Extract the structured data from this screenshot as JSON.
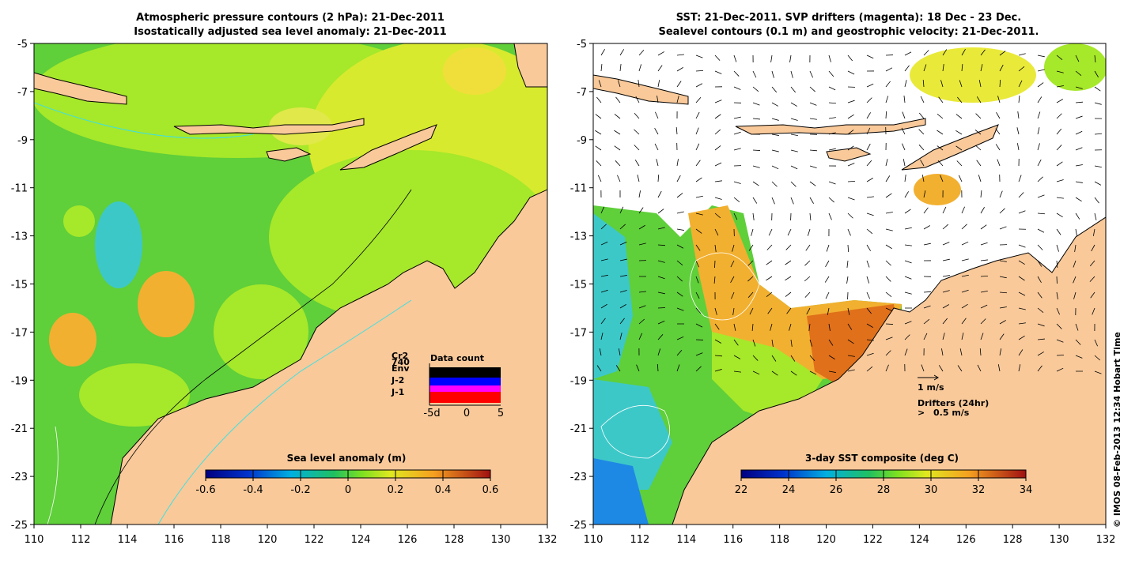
{
  "colors": {
    "land": "#f9c99a",
    "sea_green": "#5fcf3a",
    "sea_light": "#a6e82a",
    "sea_yellow": "#e9e93a",
    "sea_orange": "#f2b030",
    "sea_cyan": "#3dc8c8",
    "contour_cyan": "#40e0e0",
    "drifter_magenta": "#ff00ff",
    "env_blue": "#0000ff",
    "j1_red": "#ff0000",
    "coast": "#000000"
  },
  "left_panel": {
    "title_line1": "Atmospheric pressure contours (2 hPa): 21-Dec-2011",
    "title_line2": "Isostatically adjusted sea level anomaly: 21-Dec-2011",
    "colorbar": {
      "label": "Sea level anomaly (m)",
      "ticks": [
        "-0.6",
        "-0.4",
        "-0.2",
        "0",
        "0.2",
        "0.4",
        "0.6"
      ]
    },
    "data_count": {
      "title": "Data count",
      "satellites": [
        "Cr2",
        "740",
        "Env",
        "J-2",
        "J-1"
      ],
      "axis_ticks": [
        "-5d",
        "0",
        "5"
      ]
    }
  },
  "right_panel": {
    "title_line1": "SST: 21-Dec-2011. SVP drifters (magenta): 18 Dec - 23 Dec.",
    "title_line2": "Sealevel contours (0.1 m) and geostrophic velocity: 21-Dec-2011.",
    "scale_label": "1 m/s",
    "drifters_label": "Drifters (24hr)",
    "drifters_speed": "0.5 m/s",
    "drifter_marker": ">",
    "colorbar": {
      "label": "3-day SST composite (deg C)",
      "ticks": [
        "22",
        "24",
        "26",
        "28",
        "30",
        "32",
        "34"
      ]
    }
  },
  "axes": {
    "x_ticks": [
      "110",
      "112",
      "114",
      "116",
      "118",
      "120",
      "122",
      "124",
      "126",
      "128",
      "130",
      "132"
    ],
    "y_ticks": [
      "-5",
      "-7",
      "-9",
      "-11",
      "-13",
      "-15",
      "-17",
      "-19",
      "-21",
      "-23",
      "-25"
    ]
  },
  "credit": "© IMOS 08-Feb-2013 12:34 Hobart Time"
}
